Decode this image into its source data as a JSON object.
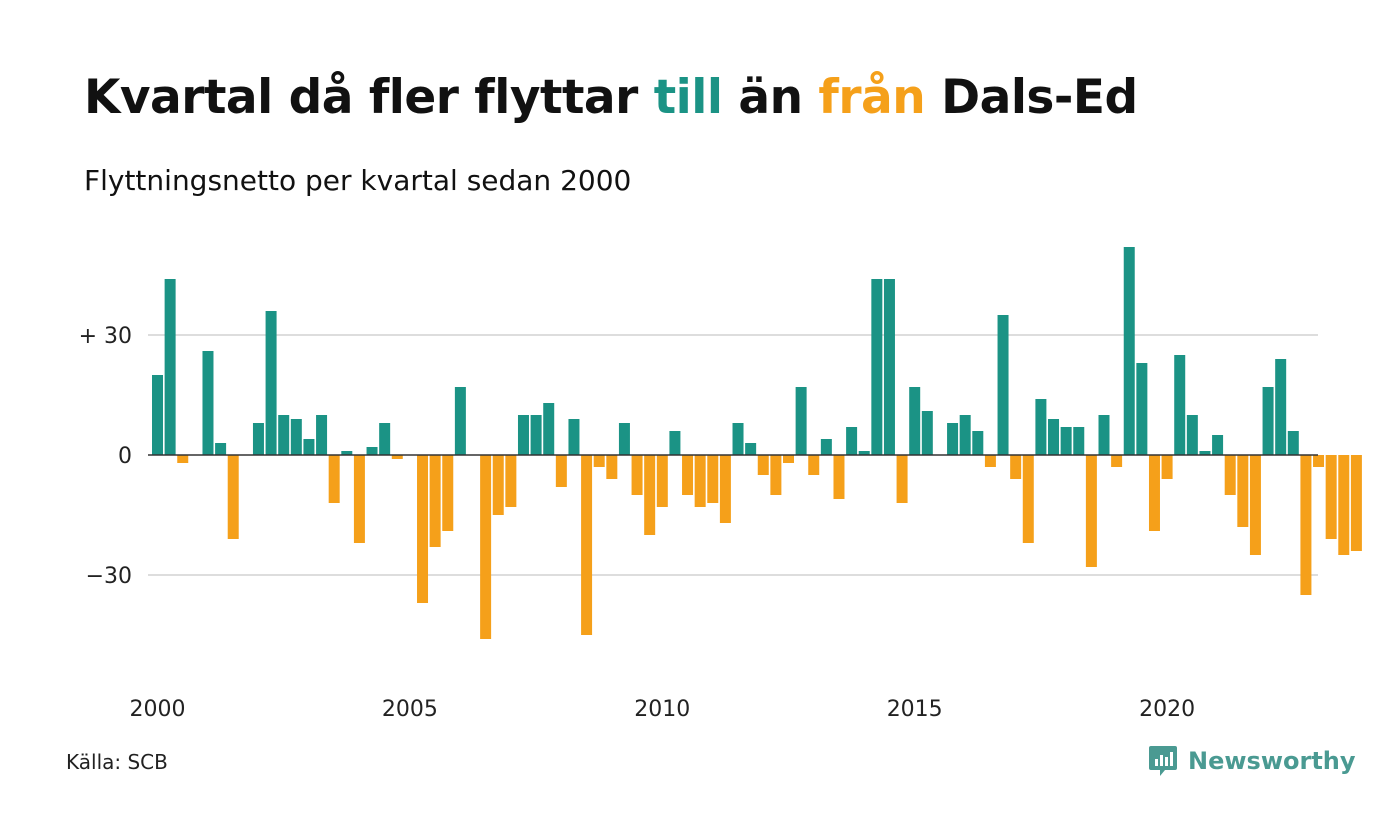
{
  "title": {
    "part1": "Kvartal då fler flyttar ",
    "till": "till",
    "part2": " än ",
    "fran": "från",
    "part3": " Dals-Ed"
  },
  "subtitle": "Flyttningsnetto per kvartal sedan 2000",
  "source": "Källa: SCB",
  "brand": {
    "name": "Newsworthy",
    "icon": "newsworthy-logo-icon"
  },
  "colors": {
    "positive": "#1b9385",
    "negative": "#f5a01a",
    "grid": "#dddddd",
    "title_till": "#1b9385",
    "title_fran": "#f5a01a"
  },
  "chart_data": {
    "type": "bar",
    "x_start": "2000 Q1",
    "x_ticks": [
      "2000",
      "2005",
      "2010",
      "2015",
      "2020"
    ],
    "y_ticks": [
      {
        "value": 30,
        "label": "+ 30"
      },
      {
        "value": 0,
        "label": "0"
      },
      {
        "value": -30,
        "label": "−30"
      }
    ],
    "ylim": [
      -50,
      54
    ],
    "grid": true,
    "categories": [
      "2000 Q1",
      "2000 Q2",
      "2000 Q3",
      "2000 Q4",
      "2001 Q1",
      "2001 Q2",
      "2001 Q3",
      "2001 Q4",
      "2002 Q1",
      "2002 Q2",
      "2002 Q3",
      "2002 Q4",
      "2003 Q1",
      "2003 Q2",
      "2003 Q3",
      "2003 Q4",
      "2004 Q1",
      "2004 Q2",
      "2004 Q3",
      "2004 Q4",
      "2005 Q1",
      "2005 Q2",
      "2005 Q3",
      "2005 Q4",
      "2006 Q1",
      "2006 Q2",
      "2006 Q3",
      "2006 Q4",
      "2007 Q1",
      "2007 Q2",
      "2007 Q3",
      "2007 Q4",
      "2008 Q1",
      "2008 Q2",
      "2008 Q3",
      "2008 Q4",
      "2009 Q1",
      "2009 Q2",
      "2009 Q3",
      "2009 Q4",
      "2010 Q1",
      "2010 Q2",
      "2010 Q3",
      "2010 Q4",
      "2011 Q1",
      "2011 Q2",
      "2011 Q3",
      "2011 Q4",
      "2012 Q1",
      "2012 Q2",
      "2012 Q3",
      "2012 Q4",
      "2013 Q1",
      "2013 Q2",
      "2013 Q3",
      "2013 Q4",
      "2014 Q1",
      "2014 Q2",
      "2014 Q3",
      "2014 Q4",
      "2015 Q1",
      "2015 Q2",
      "2015 Q3",
      "2015 Q4",
      "2016 Q1",
      "2016 Q2",
      "2016 Q3",
      "2016 Q4",
      "2017 Q1",
      "2017 Q2",
      "2017 Q3",
      "2017 Q4",
      "2018 Q1",
      "2018 Q2",
      "2018 Q3",
      "2018 Q4",
      "2019 Q1",
      "2019 Q2",
      "2019 Q3",
      "2019 Q4",
      "2020 Q1",
      "2020 Q2",
      "2020 Q3",
      "2020 Q4",
      "2021 Q1",
      "2021 Q2",
      "2021 Q3",
      "2021 Q4",
      "2022 Q1",
      "2022 Q2",
      "2022 Q3",
      "2022 Q4",
      "2023 Q1",
      "2023 Q2",
      "2023 Q3",
      "2023 Q4"
    ],
    "values": [
      20,
      44,
      -2,
      0,
      26,
      3,
      -21,
      0,
      8,
      36,
      10,
      9,
      4,
      10,
      -12,
      1,
      -22,
      2,
      8,
      -1,
      0,
      -37,
      -23,
      -19,
      17,
      0,
      -46,
      -15,
      -13,
      10,
      10,
      13,
      -8,
      9,
      -45,
      -3,
      -6,
      8,
      -10,
      -20,
      -13,
      6,
      -10,
      -13,
      -12,
      -17,
      8,
      3,
      -5,
      -10,
      -2,
      17,
      -5,
      4,
      -11,
      7,
      1,
      44,
      44,
      -12,
      17,
      11,
      0,
      8,
      10,
      6,
      -3,
      35,
      -6,
      -22,
      14,
      9,
      7,
      7,
      -28,
      10,
      -3,
      52,
      23,
      -19,
      -6,
      25,
      10,
      1,
      5,
      -10,
      -18,
      -25,
      17,
      24,
      6,
      -35,
      -3,
      -21,
      -25,
      -24
    ]
  }
}
